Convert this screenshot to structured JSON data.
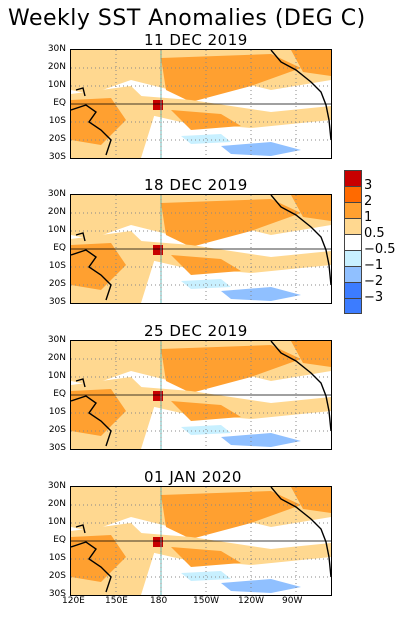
{
  "title": "Weekly SST Anomalies (DEG C)",
  "panels": [
    {
      "title": "11 DEC 2019"
    },
    {
      "title": "18 DEC 2019"
    },
    {
      "title": "25 DEC 2019"
    },
    {
      "title": "01 JAN 2020"
    }
  ],
  "lat_labels": [
    "30N",
    "20N",
    "10N",
    "EQ",
    "10S",
    "20S",
    "30S"
  ],
  "lon_labels": [
    "120E",
    "150E",
    "180",
    "150W",
    "120W",
    "90W"
  ],
  "legend": {
    "labels": [
      "3",
      "2",
      "1",
      "0.5",
      "−0.5",
      "−1",
      "−2",
      "−3"
    ],
    "colors": [
      "#c80000",
      "#ff6a00",
      "#ffa030",
      "#ffd890",
      "#ffffff",
      "#c8f0ff",
      "#90c0ff",
      "#3c7cff"
    ],
    "bottom_color": "#3c7cff"
  }
}
